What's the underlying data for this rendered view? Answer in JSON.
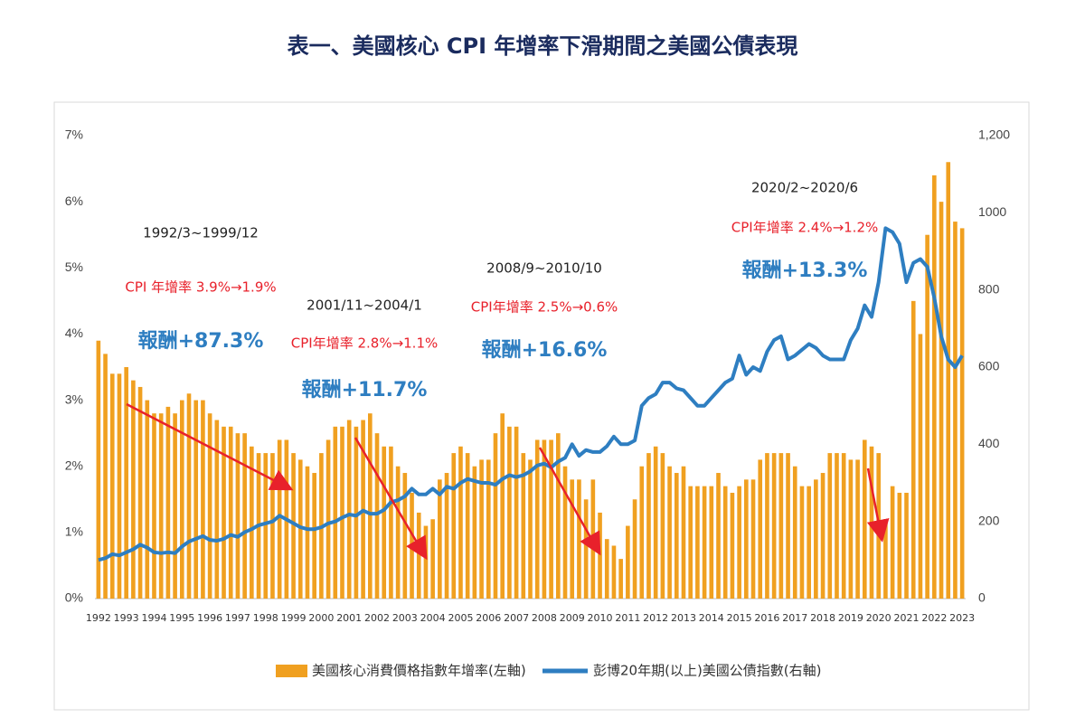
{
  "chart_data": {
    "type": "bar-line",
    "title": "表一、美國核心 CPI 年增率下滑期間之美國公債表現",
    "categories": [
      "1992",
      null,
      null,
      null,
      "1993",
      null,
      null,
      null,
      "1994",
      null,
      null,
      null,
      "1995",
      null,
      null,
      null,
      "1996",
      null,
      null,
      null,
      "1997",
      null,
      null,
      null,
      "1998",
      null,
      null,
      null,
      "1999",
      null,
      null,
      null,
      "2000",
      null,
      null,
      null,
      "2001",
      null,
      null,
      null,
      "2002",
      null,
      null,
      null,
      "2003",
      null,
      null,
      null,
      "2004",
      null,
      null,
      null,
      "2005",
      null,
      null,
      null,
      "2006",
      null,
      null,
      null,
      "2007",
      null,
      null,
      null,
      "2008",
      null,
      null,
      null,
      "2009",
      null,
      null,
      null,
      "2010",
      null,
      null,
      null,
      "2011",
      null,
      null,
      null,
      "2012",
      null,
      null,
      null,
      "2013",
      null,
      null,
      null,
      "2014",
      null,
      null,
      null,
      "2015",
      null,
      null,
      null,
      "2016",
      null,
      null,
      null,
      "2017",
      null,
      null,
      null,
      "2018",
      null,
      null,
      null,
      "2019",
      null,
      null,
      null,
      "2020",
      null,
      null,
      null,
      "2021",
      null,
      null,
      null,
      "2022",
      null,
      null,
      null,
      "2023"
    ],
    "series": [
      {
        "name": "美國核心消費價格指數年增率(左軸)",
        "type": "bar",
        "color": "#f0a020",
        "values": [
          3.9,
          3.7,
          3.4,
          3.4,
          3.5,
          3.3,
          3.2,
          3.0,
          2.8,
          2.8,
          2.9,
          2.8,
          3.0,
          3.1,
          3.0,
          3.0,
          2.8,
          2.7,
          2.6,
          2.6,
          2.5,
          2.5,
          2.3,
          2.2,
          2.2,
          2.2,
          2.4,
          2.4,
          2.2,
          2.1,
          2.0,
          1.9,
          2.2,
          2.4,
          2.6,
          2.6,
          2.7,
          2.6,
          2.7,
          2.8,
          2.5,
          2.3,
          2.3,
          2.0,
          1.9,
          1.6,
          1.3,
          1.1,
          1.2,
          1.8,
          1.9,
          2.2,
          2.3,
          2.2,
          2.0,
          2.1,
          2.1,
          2.5,
          2.8,
          2.6,
          2.6,
          2.2,
          2.1,
          2.4,
          2.4,
          2.4,
          2.5,
          2.0,
          1.8,
          1.8,
          1.5,
          1.8,
          1.3,
          0.9,
          0.8,
          0.6,
          1.1,
          1.5,
          2.0,
          2.2,
          2.3,
          2.2,
          2.0,
          1.9,
          2.0,
          1.7,
          1.7,
          1.7,
          1.7,
          1.9,
          1.7,
          1.6,
          1.7,
          1.8,
          1.8,
          2.1,
          2.2,
          2.2,
          2.2,
          2.2,
          2.0,
          1.7,
          1.7,
          1.8,
          1.9,
          2.2,
          2.2,
          2.2,
          2.1,
          2.1,
          2.4,
          2.3,
          2.2,
          1.2,
          1.7,
          1.6,
          1.6,
          4.5,
          4.0,
          5.5,
          6.4,
          6.0,
          6.6,
          5.7,
          5.6
        ]
      },
      {
        "name": "彭博20年期(以上)美國公債指數(右軸)",
        "type": "line",
        "axis": "y2",
        "color": "#2e7ec1",
        "values": [
          100,
          105,
          115,
          112,
          120,
          128,
          140,
          132,
          120,
          118,
          120,
          118,
          135,
          148,
          155,
          162,
          152,
          150,
          155,
          165,
          160,
          172,
          180,
          190,
          195,
          200,
          215,
          205,
          195,
          185,
          180,
          180,
          185,
          195,
          200,
          210,
          218,
          215,
          228,
          220,
          220,
          230,
          250,
          255,
          265,
          285,
          270,
          270,
          285,
          270,
          290,
          285,
          300,
          310,
          305,
          300,
          300,
          295,
          310,
          320,
          315,
          320,
          330,
          345,
          350,
          340,
          355,
          365,
          400,
          370,
          385,
          380,
          380,
          395,
          420,
          400,
          400,
          410,
          500,
          520,
          530,
          560,
          560,
          545,
          540,
          520,
          500,
          500,
          520,
          540,
          560,
          570,
          630,
          580,
          600,
          590,
          640,
          670,
          680,
          620,
          630,
          645,
          660,
          650,
          630,
          620,
          620,
          620,
          670,
          700,
          760,
          730,
          820,
          960,
          950,
          920,
          820,
          870,
          880,
          860,
          780,
          680,
          620,
          600,
          630
        ]
      }
    ],
    "ylim": [
      0,
      7
    ],
    "yticks": [
      {
        "value": 0,
        "label": "0%"
      },
      {
        "value": 1,
        "label": "1%"
      },
      {
        "value": 2,
        "label": "2%"
      },
      {
        "value": 3,
        "label": "3%"
      },
      {
        "value": 4,
        "label": "4%"
      },
      {
        "value": 5,
        "label": "5%"
      },
      {
        "value": 6,
        "label": "6%"
      },
      {
        "value": 7,
        "label": "7%"
      }
    ],
    "y2lim": [
      0,
      1200
    ],
    "y2ticks": [
      0,
      200,
      400,
      600,
      800,
      1000,
      {
        "value": 1200,
        "label": "1,200"
      }
    ],
    "annotations": [
      {
        "period": "1992/3~1999/12",
        "cpi": "CPI 年增率  3.9%→1.9%",
        "return": "報酬+87.3%"
      },
      {
        "period": "2001/11~2004/1",
        "cpi": "CPI年增率 2.8%→1.1%",
        "return": "報酬+11.7%"
      },
      {
        "period": "2008/9~2010/10",
        "cpi": "CPI年增率 2.5%→0.6%",
        "return": "報酬+16.6%"
      },
      {
        "period": "2020/2~2020/6",
        "cpi": "CPI年增率 2.4%→1.2%",
        "return": "報酬+13.3%"
      }
    ]
  }
}
